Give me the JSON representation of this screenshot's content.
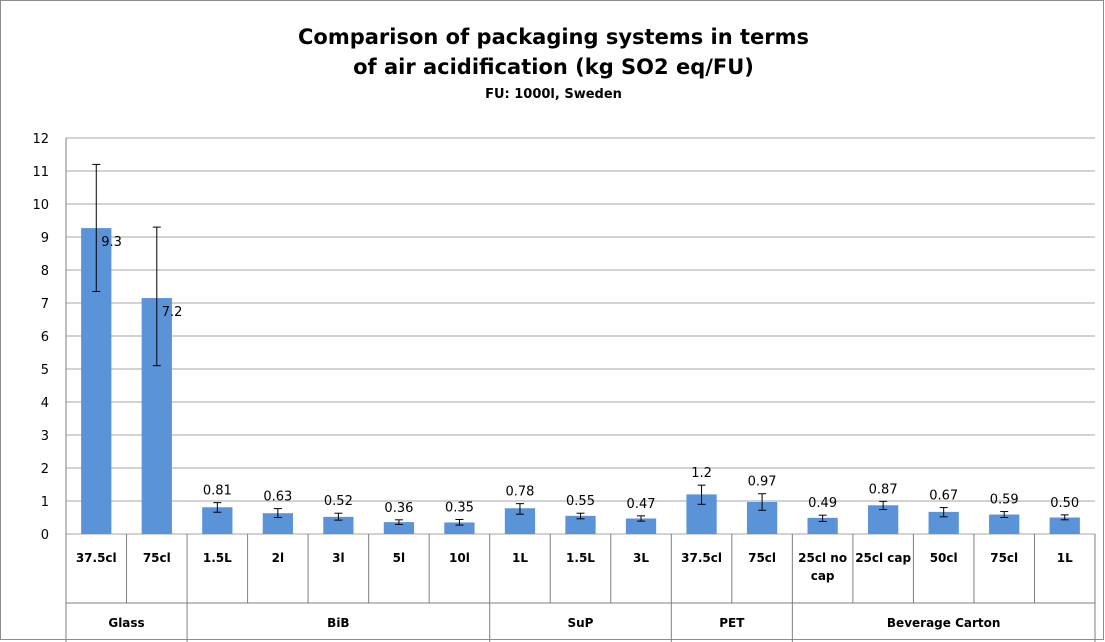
{
  "chart_data": {
    "type": "bar",
    "title_line1": "Comparison of packaging systems in terms",
    "title_line2": "of air acidification  (kg SO2 eq/FU)",
    "subtitle": "FU: 1000l, Sweden",
    "xlabel": "",
    "ylabel": "",
    "ylim": [
      0,
      12
    ],
    "yticks": [
      0,
      1,
      2,
      3,
      4,
      5,
      6,
      7,
      8,
      9,
      10,
      11,
      12
    ],
    "grid": true,
    "legend": "none",
    "bar_color": "#5b93d8",
    "groups": [
      {
        "name": "Glass",
        "items": [
          {
            "category": "37.5cl",
            "value": 9.27,
            "label": "9.3",
            "err_low": 7.35,
            "err_high": 11.2
          },
          {
            "category": "75cl",
            "value": 7.15,
            "label": "7.2",
            "err_low": 5.1,
            "err_high": 9.3
          }
        ]
      },
      {
        "name": "BiB",
        "items": [
          {
            "category": "1.5L",
            "value": 0.81,
            "label": "0.81",
            "err_low": 0.66,
            "err_high": 0.95
          },
          {
            "category": "2l",
            "value": 0.63,
            "label": "0.63",
            "err_low": 0.5,
            "err_high": 0.77
          },
          {
            "category": "3l",
            "value": 0.52,
            "label": "0.52",
            "err_low": 0.42,
            "err_high": 0.63
          },
          {
            "category": "5l",
            "value": 0.36,
            "label": "0.36",
            "err_low": 0.29,
            "err_high": 0.43
          },
          {
            "category": "10l",
            "value": 0.35,
            "label": "0.35",
            "err_low": 0.27,
            "err_high": 0.44
          }
        ]
      },
      {
        "name": "SuP",
        "items": [
          {
            "category": "1L",
            "value": 0.78,
            "label": "0.78",
            "err_low": 0.6,
            "err_high": 0.92
          },
          {
            "category": "1.5L",
            "value": 0.55,
            "label": "0.55",
            "err_low": 0.46,
            "err_high": 0.63
          },
          {
            "category": "3L",
            "value": 0.47,
            "label": "0.47",
            "err_low": 0.39,
            "err_high": 0.55
          }
        ]
      },
      {
        "name": "PET",
        "items": [
          {
            "category": "37.5cl",
            "value": 1.2,
            "label": "1.2",
            "err_low": 0.9,
            "err_high": 1.48
          },
          {
            "category": "75cl",
            "value": 0.97,
            "label": "0.97",
            "err_low": 0.72,
            "err_high": 1.22
          }
        ]
      },
      {
        "name": "Beverage Carton",
        "items": [
          {
            "category": "25cl no cap",
            "value": 0.49,
            "label": "0.49",
            "err_low": 0.38,
            "err_high": 0.57
          },
          {
            "category": "25cl cap",
            "value": 0.87,
            "label": "0.87",
            "err_low": 0.74,
            "err_high": 0.99
          },
          {
            "category": "50cl",
            "value": 0.67,
            "label": "0.67",
            "err_low": 0.52,
            "err_high": 0.8
          },
          {
            "category": "75cl",
            "value": 0.59,
            "label": "0.59",
            "err_low": 0.5,
            "err_high": 0.68
          },
          {
            "category": "1L",
            "value": 0.5,
            "label": "0.50",
            "err_low": 0.43,
            "err_high": 0.58
          }
        ]
      }
    ]
  }
}
